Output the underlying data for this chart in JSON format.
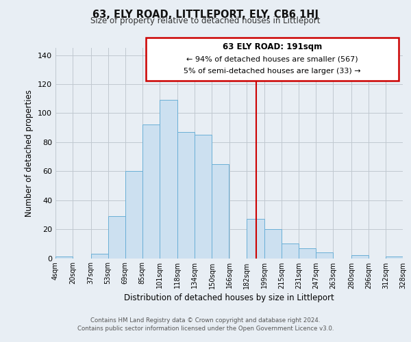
{
  "title": "63, ELY ROAD, LITTLEPORT, ELY, CB6 1HJ",
  "subtitle": "Size of property relative to detached houses in Littleport",
  "xlabel": "Distribution of detached houses by size in Littleport",
  "ylabel": "Number of detached properties",
  "footer_line1": "Contains HM Land Registry data © Crown copyright and database right 2024.",
  "footer_line2": "Contains public sector information licensed under the Open Government Licence v3.0.",
  "bin_edges": [
    4,
    20,
    37,
    53,
    69,
    85,
    101,
    118,
    134,
    150,
    166,
    182,
    199,
    215,
    231,
    247,
    263,
    280,
    296,
    312,
    328
  ],
  "bin_labels": [
    "4sqm",
    "20sqm",
    "37sqm",
    "53sqm",
    "69sqm",
    "85sqm",
    "101sqm",
    "118sqm",
    "134sqm",
    "150sqm",
    "166sqm",
    "182sqm",
    "199sqm",
    "215sqm",
    "231sqm",
    "247sqm",
    "263sqm",
    "280sqm",
    "296sqm",
    "312sqm",
    "328sqm"
  ],
  "bar_heights": [
    1,
    0,
    3,
    29,
    60,
    92,
    109,
    87,
    85,
    65,
    0,
    27,
    20,
    10,
    7,
    4,
    0,
    2,
    0,
    1
  ],
  "bar_color": "#cce0f0",
  "bar_edge_color": "#6aafd6",
  "vline_x": 191,
  "vline_color": "#cc0000",
  "annotation_text_line1": "63 ELY ROAD: 191sqm",
  "annotation_text_line2": "← 94% of detached houses are smaller (567)",
  "annotation_text_line3": "5% of semi-detached houses are larger (33) →",
  "ylim": [
    0,
    145
  ],
  "background_color": "#e8eef4",
  "plot_bg_color": "#e8eef4",
  "grid_color": "#c0c8d0"
}
